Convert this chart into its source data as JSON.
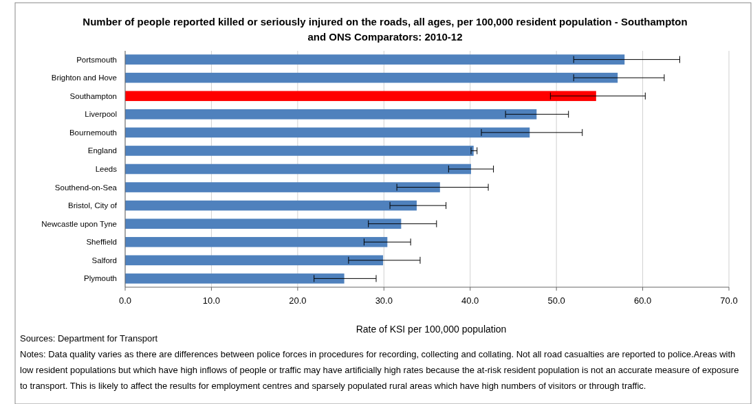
{
  "chart_data": {
    "type": "bar",
    "orientation": "horizontal",
    "title": "Number of people reported killed or seriously injured on the roads, all ages, per 100,000 resident population - Southampton and ONS Comparators: 2010-12",
    "xlabel": "Rate of KSI per 100,000 population",
    "categories": [
      "Portsmouth",
      "Brighton and Hove",
      "Southampton",
      "Liverpool",
      "Bournemouth",
      "England",
      "Leeds",
      "Southend-on-Sea",
      "Bristol, City of",
      "Newcastle upon Tyne",
      "Sheffield",
      "Salford",
      "Plymouth"
    ],
    "values": [
      57.9,
      57.1,
      54.6,
      47.7,
      46.9,
      40.4,
      40.1,
      36.5,
      33.8,
      32.0,
      30.4,
      29.9,
      25.4
    ],
    "errors": [
      [
        52.0,
        64.3
      ],
      [
        52.0,
        62.5
      ],
      [
        49.3,
        60.3
      ],
      [
        44.1,
        51.4
      ],
      [
        41.3,
        53.0
      ],
      [
        40.1,
        40.8
      ],
      [
        37.5,
        42.7
      ],
      [
        31.5,
        42.1
      ],
      [
        30.7,
        37.2
      ],
      [
        28.2,
        36.1
      ],
      [
        27.7,
        33.1
      ],
      [
        25.9,
        34.2
      ],
      [
        21.9,
        29.1
      ]
    ],
    "colors": [
      "#4f81bd",
      "#4f81bd",
      "#ff0000",
      "#4f81bd",
      "#4f81bd",
      "#4f81bd",
      "#4f81bd",
      "#4f81bd",
      "#4f81bd",
      "#4f81bd",
      "#4f81bd",
      "#4f81bd",
      "#4f81bd"
    ],
    "xlim": [
      0,
      70
    ],
    "xticks": [
      {
        "value": 0,
        "label": "0.0"
      },
      {
        "value": 10,
        "label": "10.0"
      },
      {
        "value": 20,
        "label": "20.0"
      },
      {
        "value": 30,
        "label": "30.0"
      },
      {
        "value": 40,
        "label": "40.0"
      },
      {
        "value": 50,
        "label": "50.0"
      },
      {
        "value": 60,
        "label": "60.0"
      },
      {
        "value": 70,
        "label": "70.0"
      }
    ],
    "grid": "x",
    "annotations": [
      "Sources: Department for Transport",
      "Notes: Data quality varies as there are differences between police forces in procedures for recording, collecting and collating. Not all road casualties are reported to police.Areas with low resident populations but which have high inflows of people or traffic may have artificially high rates because the at-risk resident population is not an accurate measure of exposure to transport. This is likely to affect the results for employment centres and sparsely populated rural areas which have high numbers of visitors or through traffic."
    ]
  }
}
